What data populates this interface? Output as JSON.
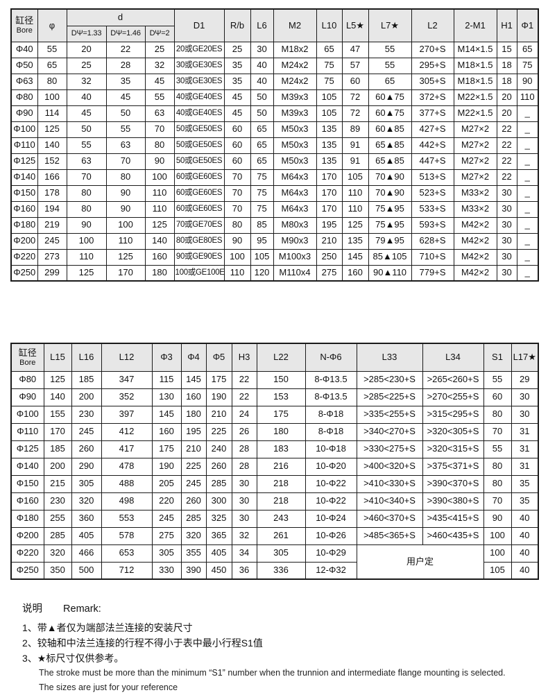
{
  "table1": {
    "header": {
      "bore_cn": "缸径",
      "bore_en": "Bore",
      "phi": "φ",
      "d_group": "d",
      "d_sub": [
        "DΨ=1.33",
        "DΨ=1.46",
        "DΨ=2"
      ],
      "d1": "D1",
      "rb": "R/b",
      "l6": "L6",
      "m2": "M2",
      "l10": "L10",
      "l5": "L5★",
      "l7": "L7★",
      "l2": "L2",
      "m1": "2-M1",
      "h1": "H1",
      "phi1": "Φ1"
    },
    "rows": [
      [
        "Φ40",
        "55",
        "20",
        "22",
        "25",
        "20或GE20ES",
        "25",
        "30",
        "M18x2",
        "65",
        "47",
        "55",
        "270+S",
        "M14×1.5",
        "15",
        "65"
      ],
      [
        "Φ50",
        "65",
        "25",
        "28",
        "32",
        "30或GE30ES",
        "35",
        "40",
        "M24x2",
        "75",
        "57",
        "55",
        "295+S",
        "M18×1.5",
        "18",
        "75"
      ],
      [
        "Φ63",
        "80",
        "32",
        "35",
        "45",
        "30或GE30ES",
        "35",
        "40",
        "M24x2",
        "75",
        "60",
        "65",
        "305+S",
        "M18×1.5",
        "18",
        "90"
      ],
      [
        "Φ80",
        "100",
        "40",
        "45",
        "55",
        "40或GE40ES",
        "45",
        "50",
        "M39x3",
        "105",
        "72",
        "60▲75",
        "372+S",
        "M22×1.5",
        "20",
        "110"
      ],
      [
        "Φ90",
        "114",
        "45",
        "50",
        "63",
        "40或GE40ES",
        "45",
        "50",
        "M39x3",
        "105",
        "72",
        "60▲75",
        "377+S",
        "M22×1.5",
        "20",
        "_"
      ],
      [
        "Φ100",
        "125",
        "50",
        "55",
        "70",
        "50或GE50ES",
        "60",
        "65",
        "M50x3",
        "135",
        "89",
        "60▲85",
        "427+S",
        "M27×2",
        "22",
        "_"
      ],
      [
        "Φ110",
        "140",
        "55",
        "63",
        "80",
        "50或GE50ES",
        "60",
        "65",
        "M50x3",
        "135",
        "91",
        "65▲85",
        "442+S",
        "M27×2",
        "22",
        "_"
      ],
      [
        "Φ125",
        "152",
        "63",
        "70",
        "90",
        "50或GE50ES",
        "60",
        "65",
        "M50x3",
        "135",
        "91",
        "65▲85",
        "447+S",
        "M27×2",
        "22",
        "_"
      ],
      [
        "Φ140",
        "166",
        "70",
        "80",
        "100",
        "60或GE60ES",
        "70",
        "75",
        "M64x3",
        "170",
        "105",
        "70▲90",
        "513+S",
        "M27×2",
        "22",
        "_"
      ],
      [
        "Φ150",
        "178",
        "80",
        "90",
        "110",
        "60或GE60ES",
        "70",
        "75",
        "M64x3",
        "170",
        "110",
        "70▲90",
        "523+S",
        "M33×2",
        "30",
        "_"
      ],
      [
        "Φ160",
        "194",
        "80",
        "90",
        "110",
        "60或GE60ES",
        "70",
        "75",
        "M64x3",
        "170",
        "110",
        "75▲95",
        "533+S",
        "M33×2",
        "30",
        "_"
      ],
      [
        "Φ180",
        "219",
        "90",
        "100",
        "125",
        "70或GE70ES",
        "80",
        "85",
        "M80x3",
        "195",
        "125",
        "75▲95",
        "593+S",
        "M42×2",
        "30",
        "_"
      ],
      [
        "Φ200",
        "245",
        "100",
        "110",
        "140",
        "80或GE80ES",
        "90",
        "95",
        "M90x3",
        "210",
        "135",
        "79▲95",
        "628+S",
        "M42×2",
        "30",
        "_"
      ],
      [
        "Φ220",
        "273",
        "110",
        "125",
        "160",
        "90或GE90ES",
        "100",
        "105",
        "M100x3",
        "250",
        "145",
        "85▲105",
        "710+S",
        "M42×2",
        "30",
        "_"
      ],
      [
        "Φ250",
        "299",
        "125",
        "170",
        "180",
        "100或GE100ES",
        "110",
        "120",
        "M110x4",
        "275",
        "160",
        "90▲110",
        "779+S",
        "M42×2",
        "30",
        "_"
      ]
    ]
  },
  "table2": {
    "header": {
      "bore_cn": "缸径",
      "bore_en": "Bore",
      "cols": [
        "L15",
        "L16",
        "L12",
        "Φ3",
        "Φ4",
        "Φ5",
        "H3",
        "L22",
        "N-Φ6",
        "L33",
        "L34",
        "S1",
        "L17★"
      ]
    },
    "rows": [
      [
        "Φ80",
        "125",
        "185",
        "347",
        "115",
        "145",
        "175",
        "22",
        "150",
        "8-Φ13.5",
        ">285<230+S",
        ">265<260+S",
        "55",
        "29"
      ],
      [
        "Φ90",
        "140",
        "200",
        "352",
        "130",
        "160",
        "190",
        "22",
        "153",
        "8-Φ13.5",
        ">285<225+S",
        ">270<255+S",
        "60",
        "30"
      ],
      [
        "Φ100",
        "155",
        "230",
        "397",
        "145",
        "180",
        "210",
        "24",
        "175",
        "8-Φ18",
        ">335<255+S",
        ">315<295+S",
        "80",
        "30"
      ],
      [
        "Φ110",
        "170",
        "245",
        "412",
        "160",
        "195",
        "225",
        "26",
        "180",
        "8-Φ18",
        ">340<270+S",
        ">320<305+S",
        "70",
        "31"
      ],
      [
        "Φ125",
        "185",
        "260",
        "417",
        "175",
        "210",
        "240",
        "28",
        "183",
        "10-Φ18",
        ">330<275+S",
        ">320<315+S",
        "55",
        "31"
      ],
      [
        "Φ140",
        "200",
        "290",
        "478",
        "190",
        "225",
        "260",
        "28",
        "216",
        "10-Φ20",
        ">400<320+S",
        ">375<371+S",
        "80",
        "31"
      ],
      [
        "Φ150",
        "215",
        "305",
        "488",
        "205",
        "245",
        "285",
        "30",
        "218",
        "10-Φ22",
        ">410<330+S",
        ">390<370+S",
        "80",
        "35"
      ],
      [
        "Φ160",
        "230",
        "320",
        "498",
        "220",
        "260",
        "300",
        "30",
        "218",
        "10-Φ22",
        ">410<340+S",
        ">390<380+S",
        "70",
        "35"
      ],
      [
        "Φ180",
        "255",
        "360",
        "553",
        "245",
        "285",
        "325",
        "30",
        "243",
        "10-Φ24",
        ">460<370+S",
        ">435<415+S",
        "90",
        "40"
      ],
      [
        "Φ200",
        "285",
        "405",
        "578",
        "275",
        "320",
        "365",
        "32",
        "261",
        "10-Φ26",
        ">485<365+S",
        ">460<435+S",
        "100",
        "40"
      ],
      [
        "Φ220",
        "320",
        "466",
        "653",
        "305",
        "355",
        "405",
        "34",
        "305",
        "10-Φ29",
        {
          "t": "用户定",
          "cs": 2,
          "rs": 2
        },
        "100",
        "40"
      ],
      [
        "Φ250",
        "350",
        "500",
        "712",
        "330",
        "390",
        "450",
        "36",
        "336",
        "12-Φ32",
        "105",
        "40"
      ]
    ]
  },
  "remark": {
    "title_cn": "说明",
    "title_en": "Remark:",
    "items": [
      "1、带▲者仅为端部法兰连接的安装尺寸",
      "2、铰轴和中法兰连接的行程不得小于表中最小行程S1值",
      "3、★标尺寸仅供参考。"
    ],
    "en_lines": [
      "The stroke must be more than the minimum “S1” number when the  trunnion and intermediate flange mounting is selected.",
      "The sizes are just for your reference"
    ]
  }
}
